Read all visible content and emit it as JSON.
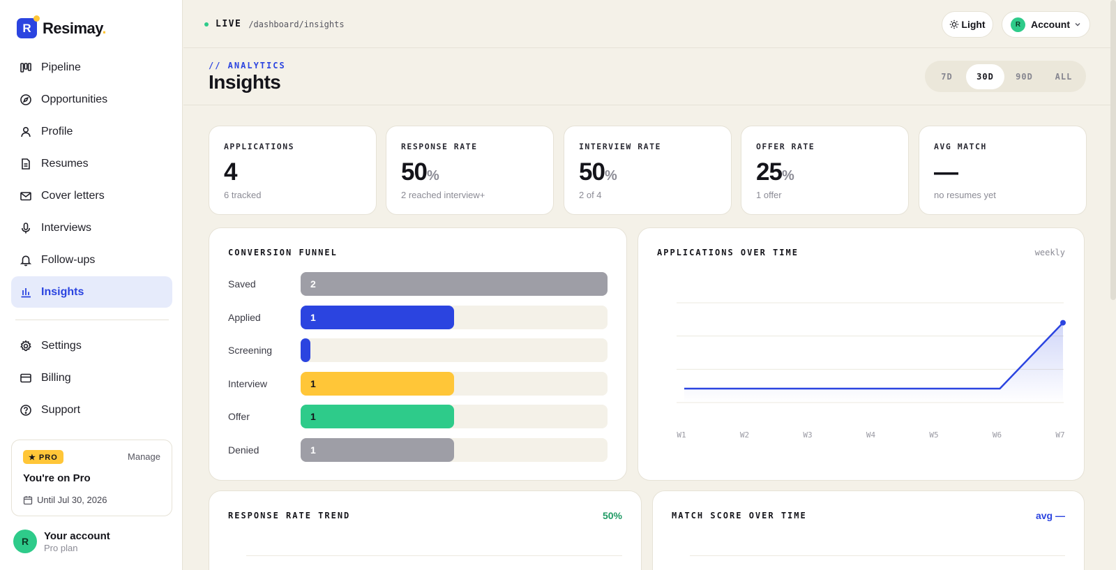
{
  "brand": {
    "mark": "R",
    "name": "Resimay",
    "dot": "."
  },
  "sidebar": {
    "nav_top": [
      {
        "label": "Pipeline",
        "icon": "kanban-icon"
      },
      {
        "label": "Opportunities",
        "icon": "compass-icon"
      },
      {
        "label": "Profile",
        "icon": "user-icon"
      },
      {
        "label": "Resumes",
        "icon": "document-icon"
      },
      {
        "label": "Cover letters",
        "icon": "mail-icon"
      },
      {
        "label": "Interviews",
        "icon": "microphone-icon"
      },
      {
        "label": "Follow-ups",
        "icon": "bell-icon"
      },
      {
        "label": "Insights",
        "icon": "bar-chart-icon",
        "active": true
      }
    ],
    "nav_bottom": [
      {
        "label": "Settings",
        "icon": "gear-icon"
      },
      {
        "label": "Billing",
        "icon": "credit-card-icon"
      },
      {
        "label": "Support",
        "icon": "help-circle-icon"
      }
    ],
    "pro_card": {
      "badge": "★ PRO",
      "manage": "Manage",
      "title": "You're on Pro",
      "until": "Until Jul 30, 2026"
    },
    "account": {
      "initial": "R",
      "name": "Your account",
      "plan": "Pro plan"
    }
  },
  "topbar": {
    "live": "LIVE",
    "path": "/dashboard/insights",
    "theme_label": "Light",
    "account_initial": "R",
    "account_label": "Account"
  },
  "header": {
    "eyebrow": "// ANALYTICS",
    "title": "Insights",
    "ranges": [
      "7D",
      "30D",
      "90D",
      "ALL"
    ],
    "active_range": "30D"
  },
  "stats": [
    {
      "label": "APPLICATIONS",
      "value": "4",
      "unit": "",
      "sub": "6 tracked"
    },
    {
      "label": "RESPONSE RATE",
      "value": "50",
      "unit": "%",
      "sub": "2 reached interview+"
    },
    {
      "label": "INTERVIEW RATE",
      "value": "50",
      "unit": "%",
      "sub": "2 of 4"
    },
    {
      "label": "OFFER RATE",
      "value": "25",
      "unit": "%",
      "sub": "1 offer"
    },
    {
      "label": "AVG MATCH",
      "value": "—",
      "unit": "",
      "sub": "no resumes yet"
    }
  ],
  "funnel": {
    "title": "CONVERSION FUNNEL",
    "max": 2,
    "rows": [
      {
        "label": "Saved",
        "value": 2,
        "display": "2",
        "color": "#9e9ea6",
        "text_color": "#ffffff"
      },
      {
        "label": "Applied",
        "value": 1,
        "display": "1",
        "color": "#2b44e0",
        "text_color": "#ffffff"
      },
      {
        "label": "Screening",
        "value": 0,
        "display": "",
        "color": "#2b44e0",
        "text_color": "#ffffff"
      },
      {
        "label": "Interview",
        "value": 1,
        "display": "1",
        "color": "#ffc638",
        "text_color": "#14141a"
      },
      {
        "label": "Offer",
        "value": 1,
        "display": "1",
        "color": "#2ecb8a",
        "text_color": "#14141a"
      },
      {
        "label": "Denied",
        "value": 1,
        "display": "1",
        "color": "#9e9ea6",
        "text_color": "#ffffff"
      }
    ]
  },
  "chart_data": [
    {
      "type": "area",
      "title": "APPLICATIONS OVER TIME",
      "meta": "weekly",
      "categories": [
        "W1",
        "W2",
        "W3",
        "W4",
        "W5",
        "W6",
        "W7"
      ],
      "series": [
        {
          "values": [
            0,
            0,
            0,
            0,
            0,
            0,
            4
          ]
        }
      ],
      "ylim": [
        0,
        5
      ],
      "color": "#2b44e0",
      "grid": true
    }
  ],
  "trend": {
    "title": "RESPONSE RATE TREND",
    "value": "50%"
  },
  "match": {
    "title": "MATCH SCORE OVER TIME",
    "avg": "avg —"
  }
}
